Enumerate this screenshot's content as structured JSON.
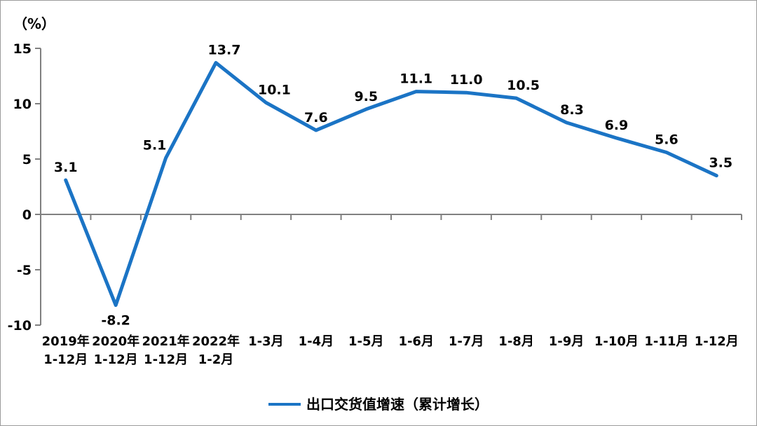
{
  "chart_data": {
    "type": "line",
    "title": "",
    "unit_label": "（%）",
    "categories": [
      [
        "2019年",
        "1-12月"
      ],
      [
        "2020年",
        "1-12月"
      ],
      [
        "2021年",
        "1-12月"
      ],
      [
        "2022年",
        "1-2月"
      ],
      [
        "1-3月"
      ],
      [
        "1-4月"
      ],
      [
        "1-5月"
      ],
      [
        "1-6月"
      ],
      [
        "1-7月"
      ],
      [
        "1-8月"
      ],
      [
        "1-9月"
      ],
      [
        "1-10月"
      ],
      [
        "1-11月"
      ],
      [
        "1-12月"
      ]
    ],
    "series": [
      {
        "name": "出口交货值增速（累计增长）",
        "values": [
          3.1,
          -8.2,
          5.1,
          13.7,
          10.1,
          7.6,
          9.5,
          11.1,
          11.0,
          10.5,
          8.3,
          6.9,
          5.6,
          3.5
        ],
        "value_labels": [
          "3.1",
          "-8.2",
          "5.1",
          "13.7",
          "10.1",
          "7.6",
          "9.5",
          "11.1",
          "11.0",
          "10.5",
          "8.3",
          "6.9",
          "5.6",
          "3.5"
        ],
        "color": "#1b74c5"
      }
    ],
    "y_ticks": [
      15,
      10,
      5,
      0,
      -5,
      -10
    ],
    "ylim": [
      -10,
      15
    ],
    "grid": false,
    "legend_position": "bottom",
    "axis_color": "#808080",
    "text_color": "#000000",
    "label_dx": [
      0,
      0,
      -16,
      12,
      12,
      0,
      0,
      0,
      0,
      10,
      8,
      0,
      0,
      6
    ]
  }
}
